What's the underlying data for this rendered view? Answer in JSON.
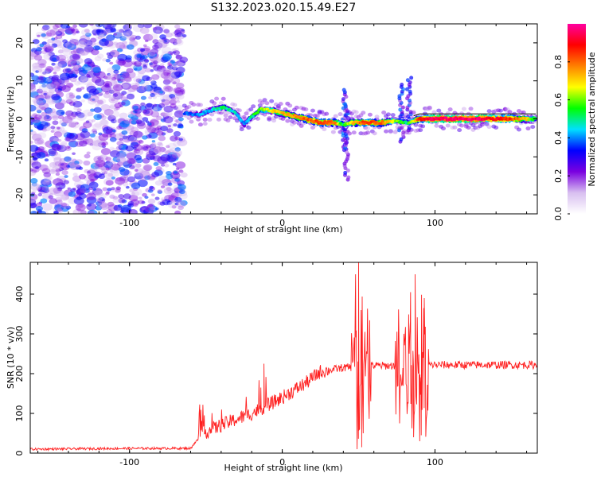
{
  "title": "S132.2023.020.15.49.E27",
  "chart_data": [
    {
      "type": "heatmap",
      "name": "spectrogram",
      "xlabel": "Height of straight line (km)",
      "ylabel": "Frequency (Hz)",
      "xlim": [
        -165,
        167
      ],
      "ylim": [
        -25,
        25
      ],
      "xticks": [
        -100,
        0,
        100
      ],
      "yticks": [
        -20,
        -10,
        0,
        10,
        20
      ],
      "noise_region_x": [
        -165,
        -64
      ],
      "ridge": [
        {
          "x": -64,
          "y": 1.5,
          "a": 0.35
        },
        {
          "x": -55,
          "y": 1.0,
          "a": 0.4
        },
        {
          "x": -45,
          "y": 2.5,
          "a": 0.45
        },
        {
          "x": -38,
          "y": 3.0,
          "a": 0.5
        },
        {
          "x": -30,
          "y": 1.5,
          "a": 0.45
        },
        {
          "x": -25,
          "y": -1.5,
          "a": 0.4
        },
        {
          "x": -20,
          "y": 0.5,
          "a": 0.5
        },
        {
          "x": -14,
          "y": 2.5,
          "a": 0.6
        },
        {
          "x": -5,
          "y": 2.0,
          "a": 0.7
        },
        {
          "x": 5,
          "y": 1.0,
          "a": 0.75
        },
        {
          "x": 15,
          "y": 0.0,
          "a": 0.8
        },
        {
          "x": 25,
          "y": -1.0,
          "a": 0.85
        },
        {
          "x": 35,
          "y": -1.0,
          "a": 0.8
        },
        {
          "x": 40,
          "y": -1.5,
          "a": 0.5
        },
        {
          "x": 45,
          "y": -1.0,
          "a": 0.7
        },
        {
          "x": 55,
          "y": -1.0,
          "a": 0.85
        },
        {
          "x": 65,
          "y": -1.0,
          "a": 0.8
        },
        {
          "x": 75,
          "y": -0.5,
          "a": 0.6
        },
        {
          "x": 82,
          "y": -1.0,
          "a": 0.5
        },
        {
          "x": 90,
          "y": 0.0,
          "a": 0.85
        },
        {
          "x": 100,
          "y": 0.0,
          "a": 0.95
        },
        {
          "x": 110,
          "y": 0.0,
          "a": 0.95
        },
        {
          "x": 120,
          "y": 0.0,
          "a": 0.95
        },
        {
          "x": 130,
          "y": 0.0,
          "a": 0.95
        },
        {
          "x": 140,
          "y": 0.0,
          "a": 0.9
        },
        {
          "x": 150,
          "y": 0.0,
          "a": 0.85
        },
        {
          "x": 160,
          "y": 0.0,
          "a": 0.7
        },
        {
          "x": 166,
          "y": 0.0,
          "a": 0.5
        }
      ],
      "colorbar": {
        "label": "Normalized spectral amplitude",
        "range": [
          0.0,
          1.0
        ],
        "ticks": [
          0.0,
          0.2,
          0.4,
          0.6,
          0.8
        ],
        "tick_labels": [
          "0.0",
          "0.2",
          "0.4",
          "0.6",
          "0.8"
        ],
        "colors": [
          "#ffffff",
          "#d8bff0",
          "#7a00e0",
          "#0000ff",
          "#00e0ff",
          "#00ff00",
          "#ffff00",
          "#ff8000",
          "#ff0000",
          "#ff00a0"
        ]
      }
    },
    {
      "type": "line",
      "name": "snr",
      "xlabel": "Height of straight line (km)",
      "ylabel": "SNR (10 * v/v)",
      "xlim": [
        -165,
        167
      ],
      "ylim": [
        0,
        480
      ],
      "xticks": [
        -100,
        0,
        100
      ],
      "yticks": [
        0,
        100,
        200,
        300,
        400
      ],
      "color": "#ff2020",
      "envelope": [
        {
          "x": -165,
          "y": 10
        },
        {
          "x": -100,
          "y": 12
        },
        {
          "x": -60,
          "y": 12
        },
        {
          "x": -52,
          "y": 50
        },
        {
          "x": -40,
          "y": 70
        },
        {
          "x": -20,
          "y": 100
        },
        {
          "x": 0,
          "y": 140
        },
        {
          "x": 15,
          "y": 175
        },
        {
          "x": 25,
          "y": 205
        },
        {
          "x": 40,
          "y": 215
        },
        {
          "x": 60,
          "y": 220
        },
        {
          "x": 80,
          "y": 220
        },
        {
          "x": 100,
          "y": 222
        },
        {
          "x": 130,
          "y": 222
        },
        {
          "x": 167,
          "y": 222
        }
      ],
      "spikes": [
        {
          "x": -51,
          "y": 95
        },
        {
          "x": -46,
          "y": 100
        },
        {
          "x": -14,
          "y": 165
        },
        {
          "x": -12,
          "y": 225
        },
        {
          "x": 48,
          "y": 450
        },
        {
          "x": 50,
          "y": 480
        },
        {
          "x": 52,
          "y": 15
        },
        {
          "x": 56,
          "y": 310
        },
        {
          "x": 84,
          "y": 405
        },
        {
          "x": 87,
          "y": 450
        },
        {
          "x": 90,
          "y": 30
        },
        {
          "x": 93,
          "y": 390
        }
      ],
      "dips": [
        {
          "x": 49,
          "y": 10
        },
        {
          "x": 53,
          "y": 50
        },
        {
          "x": 86,
          "y": 40
        },
        {
          "x": 91,
          "y": 45
        }
      ],
      "burst_regions": [
        {
          "x0": 45,
          "x1": 58,
          "amp": 230
        },
        {
          "x0": 74,
          "x1": 96,
          "amp": 200
        }
      ]
    }
  ]
}
